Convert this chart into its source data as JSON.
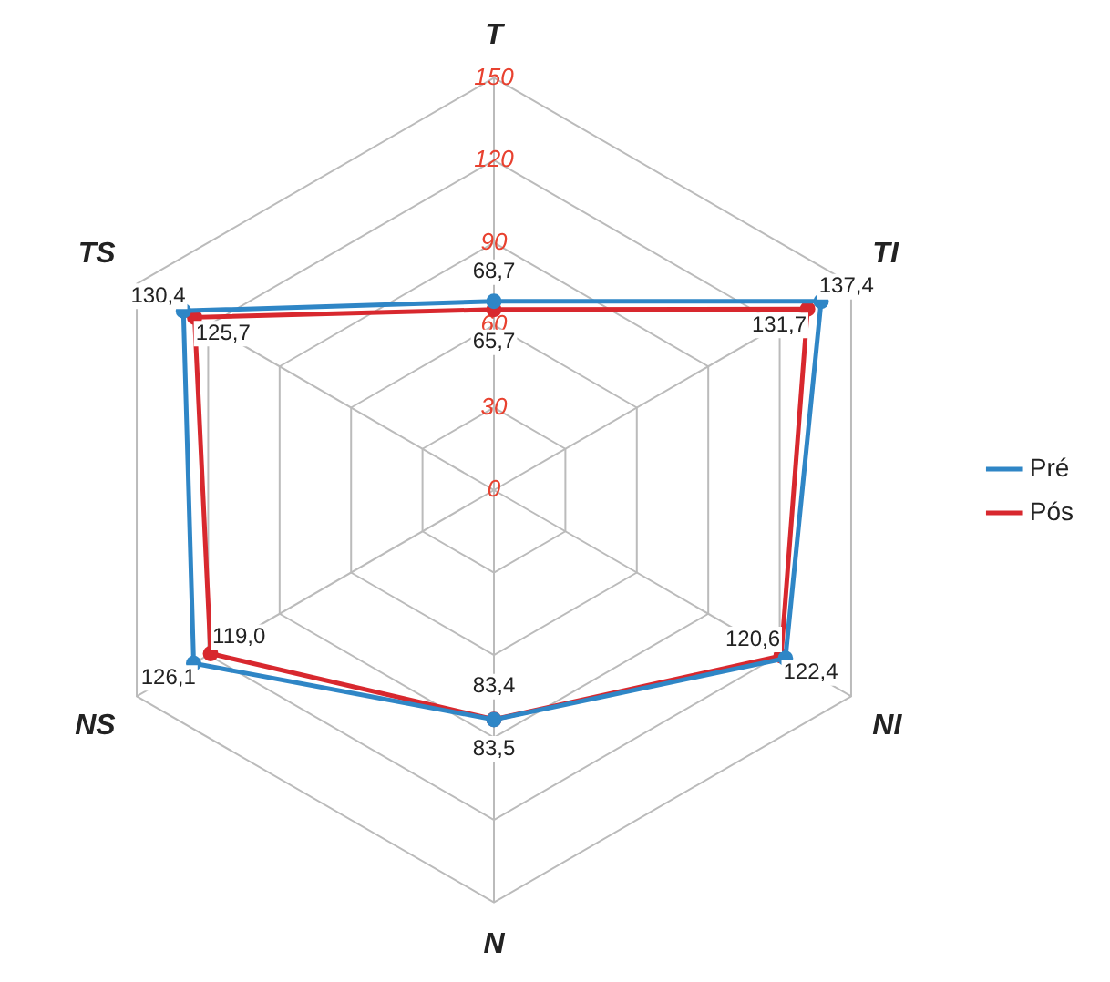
{
  "chart_data": {
    "type": "radar",
    "categories": [
      "T",
      "TI",
      "NI",
      "N",
      "NS",
      "TS"
    ],
    "series": [
      {
        "name": "Pré",
        "color": "#2f86c6",
        "values": [
          68.7,
          137.4,
          122.4,
          83.5,
          126.1,
          130.4
        ],
        "value_labels": [
          "68,7",
          "137,4",
          "122,4",
          "83,5",
          "126,1",
          "130,4"
        ]
      },
      {
        "name": "Pós",
        "color": "#d8282e",
        "values": [
          65.7,
          131.7,
          120.6,
          83.4,
          119.0,
          125.7
        ],
        "value_labels": [
          "65,7",
          "131,7",
          "120,6",
          "83,4",
          "119,0",
          "125,7"
        ]
      }
    ],
    "ylim": [
      0,
      150
    ],
    "yticks": [
      0,
      30,
      60,
      90,
      120,
      150
    ],
    "grid": true,
    "legend": "right",
    "marker": "circle"
  }
}
